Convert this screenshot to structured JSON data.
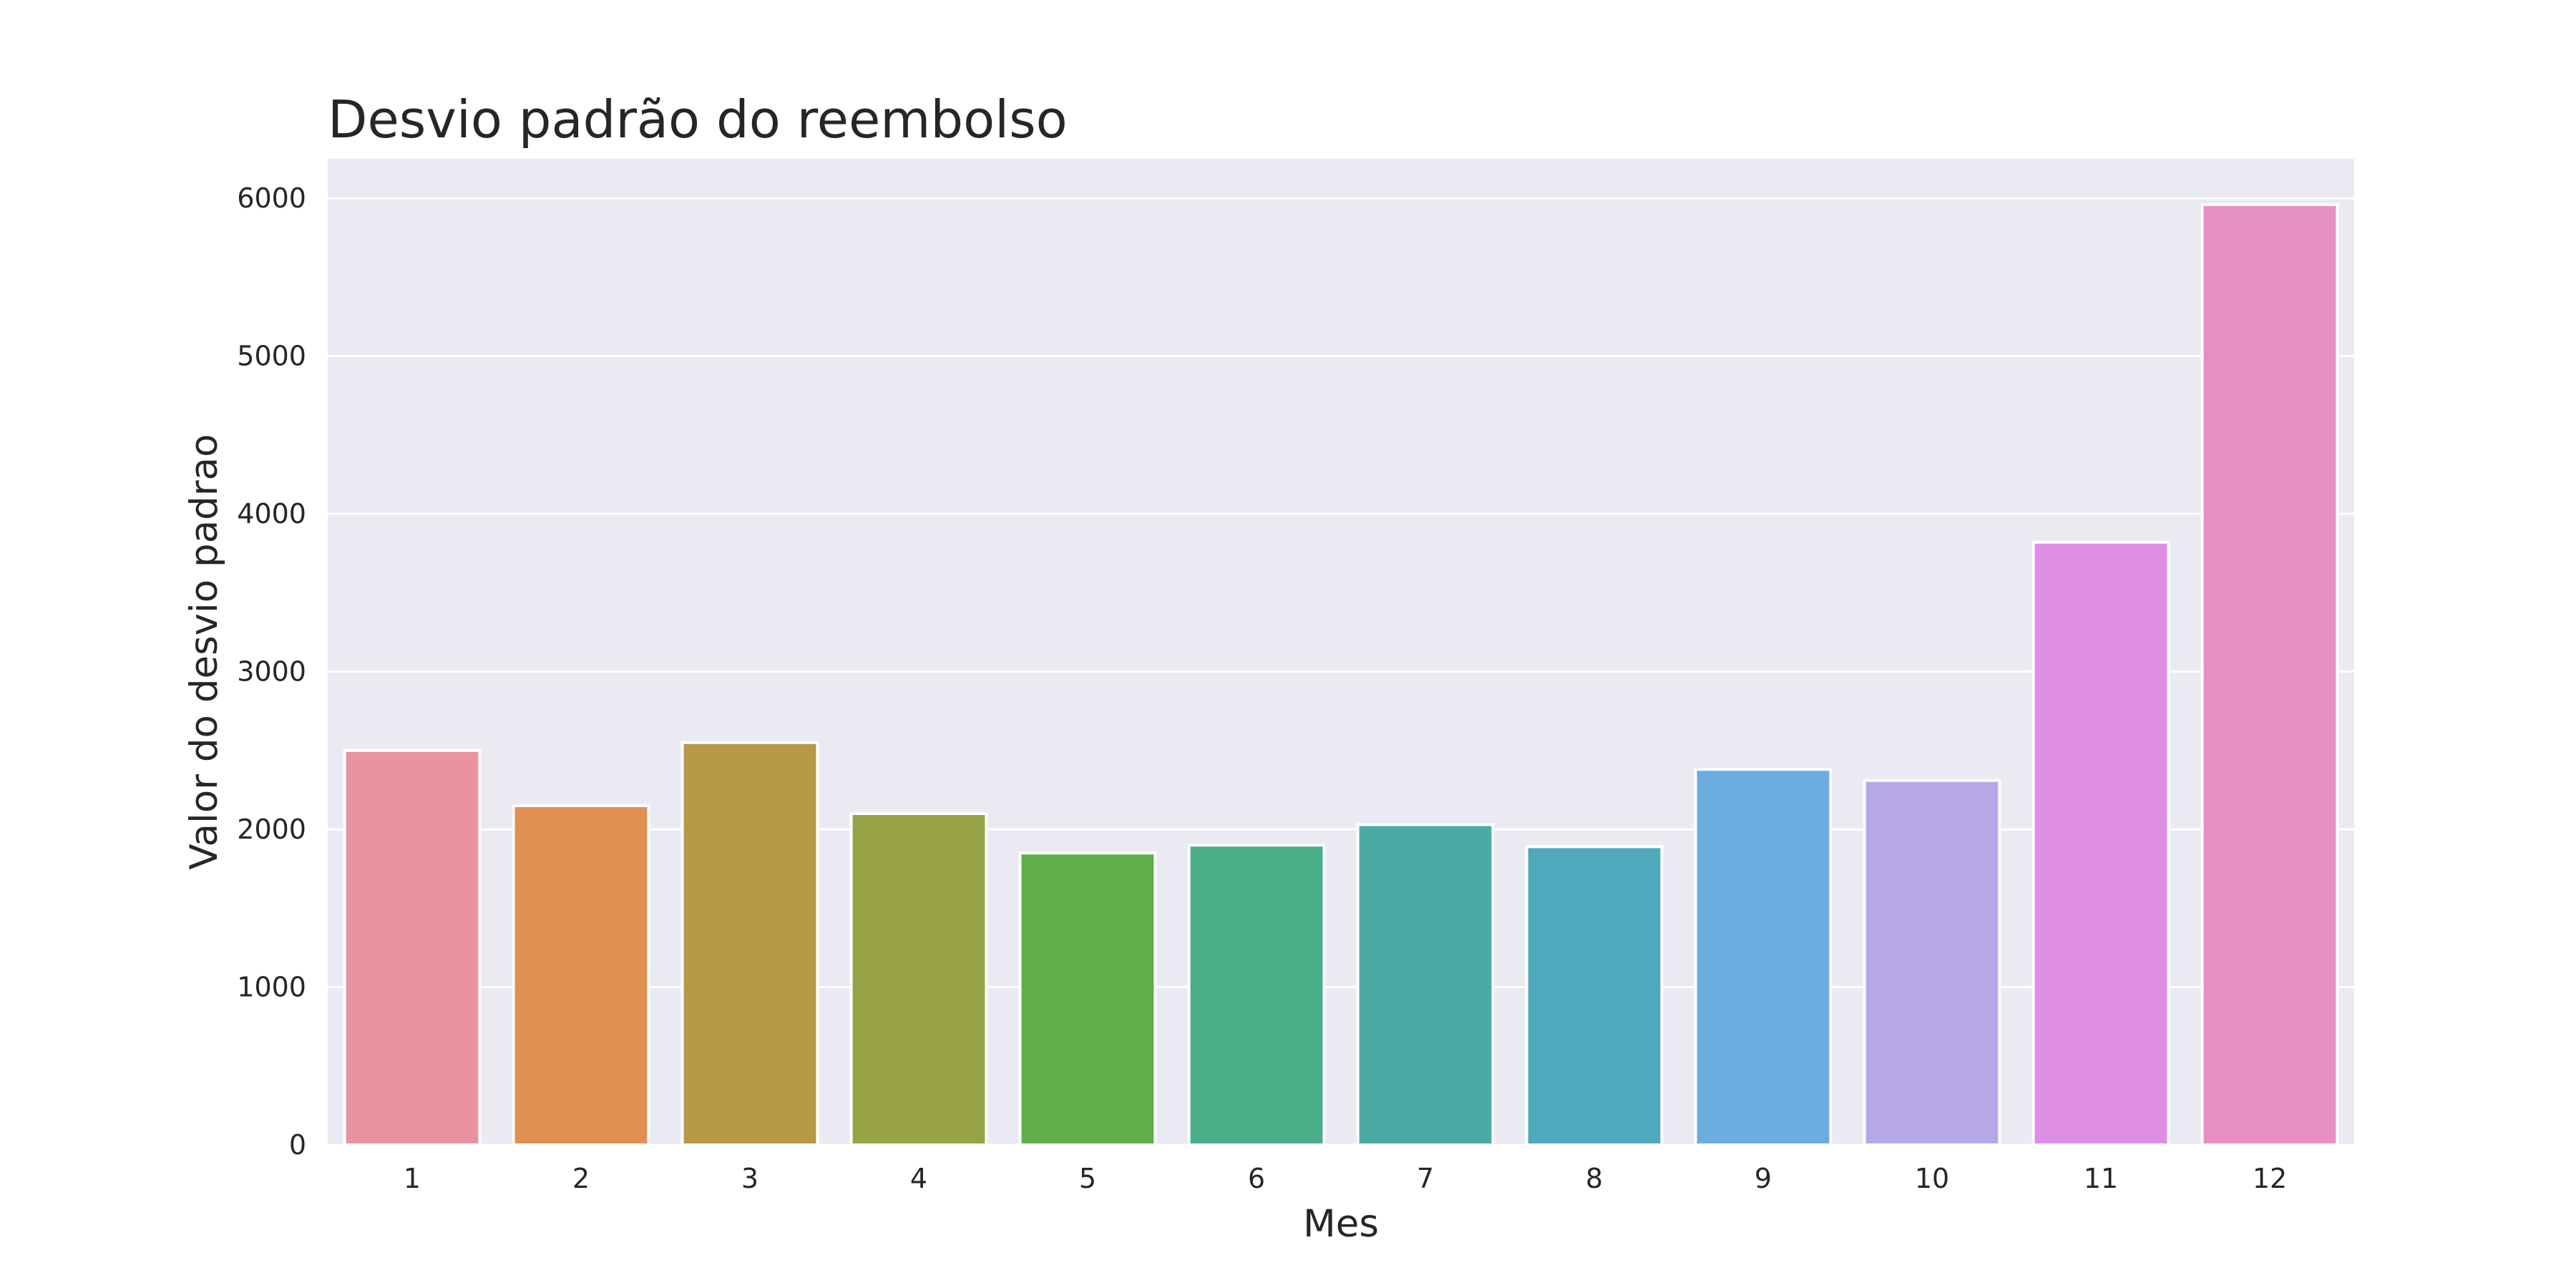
{
  "chart_data": {
    "type": "bar",
    "title": "Desvio padrão do reembolso",
    "xlabel": "Mes",
    "ylabel": "Valor do desvio padrao",
    "categories": [
      "1",
      "2",
      "3",
      "4",
      "5",
      "6",
      "7",
      "8",
      "9",
      "10",
      "11",
      "12"
    ],
    "values": [
      2500,
      2150,
      2550,
      2100,
      1850,
      1900,
      2030,
      1890,
      2380,
      2310,
      3820,
      5960
    ],
    "ylim": [
      0,
      6250
    ],
    "yticks": [
      0,
      1000,
      2000,
      3000,
      4000,
      5000,
      6000
    ],
    "grid": true,
    "colors": {
      "background": "#eaeaf2",
      "grid": "#ffffff",
      "bars": [
        "#e8939f",
        "#e09052",
        "#b69846",
        "#98a346",
        "#5fae47",
        "#4aaf89",
        "#4aaba6",
        "#4fa9bc",
        "#6badde",
        "#b6a7e9",
        "#df8ee6",
        "#e88fc2"
      ]
    }
  }
}
